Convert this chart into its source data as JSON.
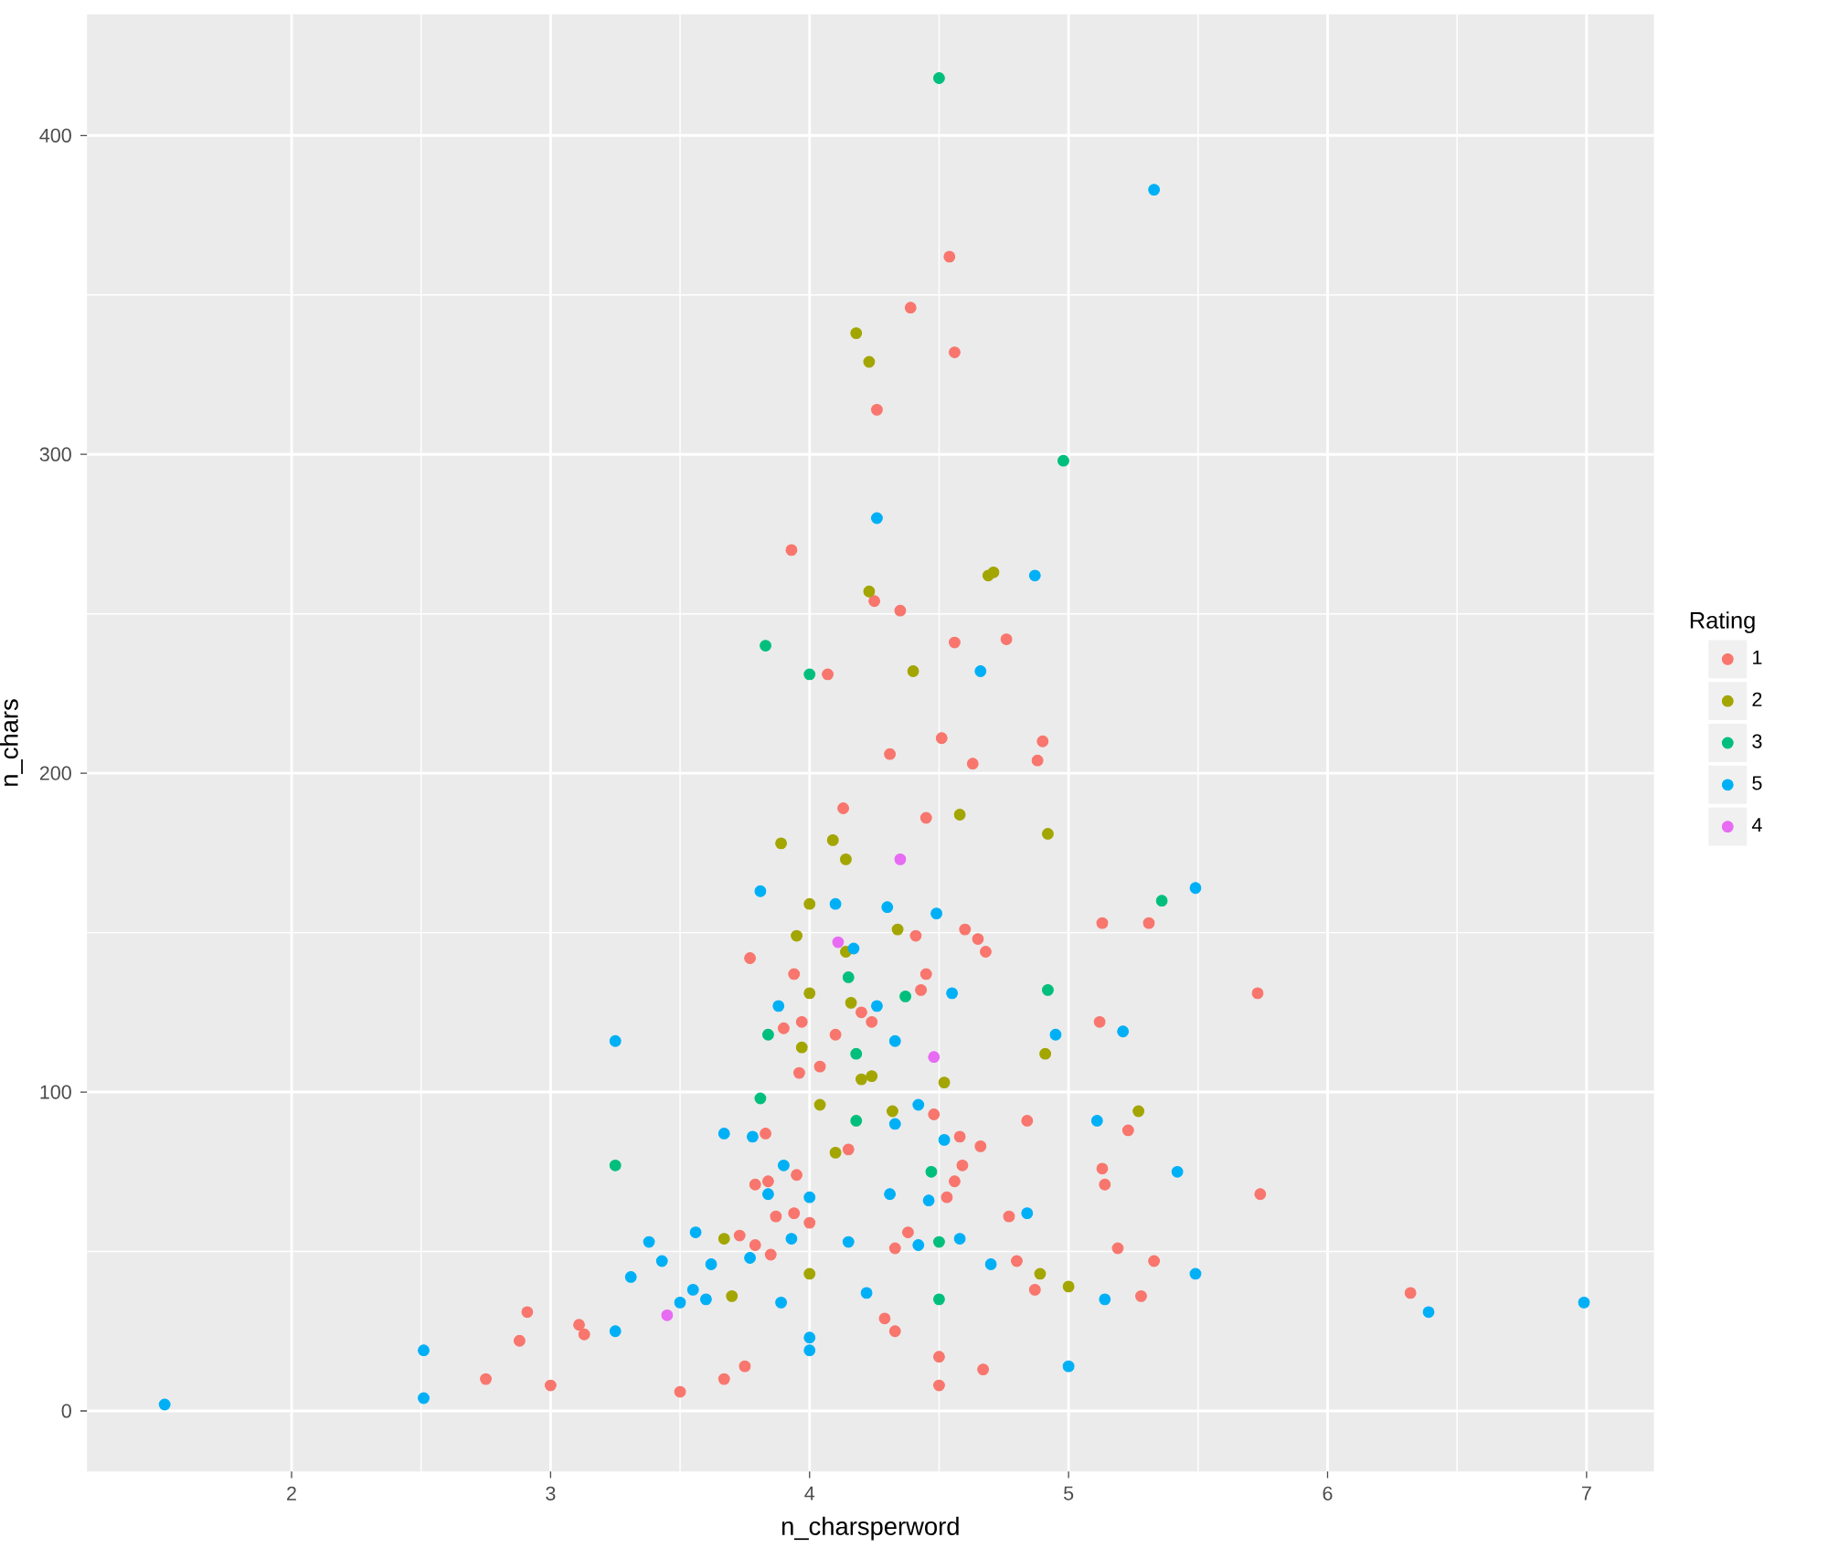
{
  "chart_data": {
    "type": "scatter",
    "xlabel": "n_charsperword",
    "ylabel": "n_chars",
    "legend_title": "Rating",
    "legend": "right",
    "grid": true,
    "xlim": [
      1.21,
      7.26
    ],
    "ylim": [
      -19,
      438
    ],
    "xticks": [
      2,
      3,
      4,
      5,
      6,
      7
    ],
    "yticks": [
      0,
      100,
      200,
      300,
      400
    ],
    "series": [
      {
        "name": "1",
        "color": "#f8766d",
        "x": [
          4.54,
          4.39,
          4.56,
          4.26,
          3.93,
          4.25,
          4.35,
          4.56,
          4.76,
          4.07,
          4.51,
          4.31,
          4.9,
          4.63,
          4.88,
          4.13,
          4.45,
          4.41,
          3.77,
          3.94,
          4.45,
          4.43,
          4.2,
          4.24,
          3.9,
          3.97,
          4.1,
          4.04,
          3.96,
          4.48,
          3.83,
          4.15,
          3.79,
          3.84,
          3.95,
          3.87,
          3.94,
          4.0,
          4.38,
          4.33,
          3.73,
          3.79,
          3.85,
          4.29,
          4.33,
          3.75,
          3.67,
          3.5,
          4.6,
          4.65,
          4.68,
          5.13,
          5.31,
          5.12,
          4.58,
          4.84,
          4.66,
          4.59,
          4.56,
          4.53,
          5.13,
          5.14,
          4.77,
          4.8,
          4.87,
          5.19,
          5.33,
          5.28,
          4.5,
          4.67,
          4.5,
          5.73,
          5.23,
          5.74,
          6.32,
          2.91,
          2.88,
          2.75,
          3.0,
          3.11,
          3.13
        ],
        "values": [
          362,
          346,
          332,
          314,
          270,
          254,
          251,
          241,
          242,
          231,
          211,
          206,
          210,
          203,
          204,
          189,
          186,
          149,
          142,
          137,
          137,
          132,
          125,
          122,
          120,
          122,
          118,
          108,
          106,
          93,
          87,
          82,
          71,
          72,
          74,
          61,
          62,
          59,
          56,
          51,
          55,
          52,
          49,
          29,
          25,
          14,
          10,
          6,
          151,
          148,
          144,
          153,
          153,
          122,
          86,
          91,
          83,
          77,
          72,
          67,
          76,
          71,
          61,
          47,
          38,
          51,
          47,
          36,
          17,
          13,
          8,
          131,
          88,
          68,
          37,
          31,
          22,
          10,
          8,
          27,
          24
        ]
      },
      {
        "name": "2",
        "color": "#a3a500",
        "x": [
          4.18,
          4.23,
          4.69,
          4.71,
          4.23,
          4.4,
          3.89,
          4.09,
          4.14,
          4.0,
          3.95,
          4.34,
          4.14,
          4.0,
          4.16,
          3.97,
          4.2,
          4.24,
          4.04,
          4.32,
          4.1,
          3.67,
          3.7,
          4.0,
          4.58,
          4.92,
          4.91,
          4.52,
          5.27,
          4.89,
          5.0
        ],
        "values": [
          338,
          329,
          262,
          263,
          257,
          232,
          178,
          179,
          173,
          159,
          149,
          151,
          144,
          131,
          128,
          114,
          104,
          105,
          96,
          94,
          81,
          54,
          36,
          43,
          187,
          181,
          112,
          103,
          94,
          43,
          39
        ]
      },
      {
        "name": "3",
        "color": "#00bf7d",
        "x": [
          4.5,
          4.98,
          3.83,
          4.0,
          4.15,
          4.37,
          3.84,
          4.18,
          3.81,
          4.18,
          4.47,
          4.92,
          5.36,
          4.5,
          4.5,
          3.25
        ],
        "values": [
          418,
          298,
          240,
          231,
          136,
          130,
          118,
          112,
          98,
          91,
          75,
          132,
          160,
          53,
          35,
          77
        ]
      },
      {
        "name": "5",
        "color": "#00b0f6",
        "x": [
          5.33,
          4.26,
          4.87,
          4.66,
          5.49,
          5.21,
          5.11,
          5.42,
          5.49,
          5.14,
          6.39,
          6.99,
          4.49,
          4.55,
          4.95,
          4.42,
          4.52,
          4.46,
          4.84,
          4.58,
          4.7,
          5.0,
          3.81,
          4.1,
          4.3,
          4.17,
          4.26,
          3.88,
          4.33,
          4.33,
          3.67,
          3.78,
          3.9,
          3.84,
          4.0,
          4.31,
          3.93,
          4.15,
          4.42,
          3.77,
          3.38,
          3.56,
          3.43,
          3.62,
          3.55,
          3.5,
          3.6,
          3.89,
          4.22,
          4.0,
          4.0,
          1.51,
          2.51,
          2.51,
          3.25,
          3.31,
          3.25
        ],
        "values": [
          383,
          280,
          262,
          232,
          164,
          119,
          91,
          75,
          43,
          35,
          31,
          34,
          156,
          131,
          118,
          96,
          85,
          66,
          62,
          54,
          46,
          14,
          163,
          159,
          158,
          145,
          127,
          127,
          116,
          90,
          87,
          86,
          77,
          68,
          67,
          68,
          54,
          53,
          52,
          48,
          53,
          56,
          47,
          46,
          38,
          34,
          35,
          34,
          37,
          23,
          19,
          2,
          19,
          4,
          116,
          42,
          25
        ]
      },
      {
        "name": "4",
        "color": "#e76bf3",
        "x": [
          4.35,
          4.11,
          4.48,
          3.45
        ],
        "values": [
          173,
          147,
          111,
          30
        ]
      }
    ]
  }
}
